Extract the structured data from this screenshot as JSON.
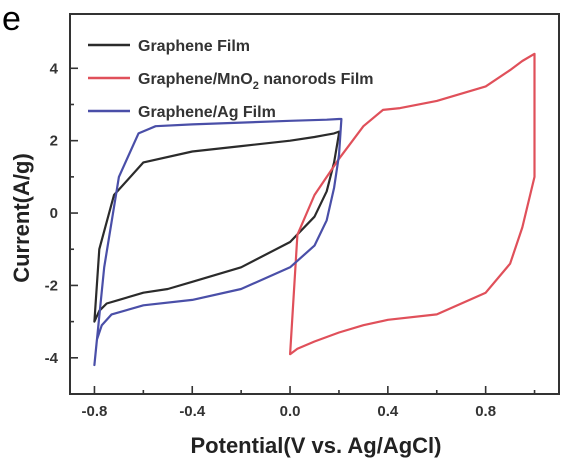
{
  "panel_label": "e",
  "chart_data": {
    "type": "line",
    "xlabel": "Potential(V vs. Ag/AgCl)",
    "ylabel": "Current(A/g)",
    "xlim": [
      -0.9,
      1.1
    ],
    "ylim": [
      -5.0,
      5.5
    ],
    "x_ticks": [
      -0.8,
      -0.4,
      0.0,
      0.4,
      0.8
    ],
    "x_tick_labels": [
      "-0.8",
      "-0.4",
      "0.0",
      "0.4",
      "0.8"
    ],
    "y_ticks": [
      -4,
      -2,
      0,
      2,
      4
    ],
    "y_tick_labels": [
      "-4",
      "-2",
      "0",
      "2",
      "4"
    ],
    "grid": false,
    "legend_position": "top-left",
    "series": [
      {
        "name": "Graphene Film",
        "legend_main": "Graphene Film",
        "legend_sub": "",
        "legend_tail": "",
        "color": "#2b2b2b",
        "x": [
          -0.8,
          -0.78,
          -0.75,
          -0.7,
          -0.6,
          -0.5,
          -0.4,
          -0.2,
          0.0,
          0.1,
          0.15,
          0.18,
          0.2,
          0.2,
          0.18,
          0.14,
          0.1,
          0.0,
          -0.2,
          -0.4,
          -0.6,
          -0.72,
          -0.78,
          -0.8
        ],
        "y": [
          -3.0,
          -2.7,
          -2.5,
          -2.4,
          -2.2,
          -2.1,
          -1.9,
          -1.5,
          -0.8,
          -0.1,
          0.6,
          1.4,
          2.2,
          2.25,
          2.2,
          2.15,
          2.1,
          2.0,
          1.85,
          1.7,
          1.4,
          0.5,
          -1.0,
          -3.0
        ]
      },
      {
        "name": "Graphene/MnO2 nanorods Film",
        "legend_main": "Graphene/MnO",
        "legend_sub": "2",
        "legend_tail": " nanorods Film",
        "color": "#e0505a",
        "x": [
          0.0,
          0.03,
          0.1,
          0.2,
          0.3,
          0.4,
          0.6,
          0.8,
          0.9,
          0.95,
          1.0,
          1.0,
          0.95,
          0.9,
          0.8,
          0.6,
          0.45,
          0.38,
          0.3,
          0.2,
          0.1,
          0.03,
          0.0
        ],
        "y": [
          -3.9,
          -3.75,
          -3.55,
          -3.3,
          -3.1,
          -2.95,
          -2.8,
          -2.2,
          -1.4,
          -0.4,
          1.0,
          4.4,
          4.2,
          3.95,
          3.5,
          3.1,
          2.9,
          2.85,
          2.4,
          1.5,
          0.5,
          -0.6,
          -3.9
        ]
      },
      {
        "name": "Graphene/Ag Film",
        "legend_main": "Graphene/Ag Film",
        "legend_sub": "",
        "legend_tail": "",
        "color": "#4a4fa8",
        "x": [
          -0.8,
          -0.79,
          -0.77,
          -0.73,
          -0.6,
          -0.4,
          -0.2,
          0.0,
          0.1,
          0.15,
          0.18,
          0.2,
          0.21,
          0.2,
          0.15,
          0.0,
          -0.2,
          -0.4,
          -0.55,
          -0.62,
          -0.7,
          -0.76,
          -0.8
        ],
        "y": [
          -4.2,
          -3.5,
          -3.1,
          -2.8,
          -2.55,
          -2.4,
          -2.1,
          -1.5,
          -0.9,
          -0.2,
          0.7,
          1.6,
          2.6,
          2.6,
          2.58,
          2.55,
          2.5,
          2.45,
          2.4,
          2.2,
          1.0,
          -1.5,
          -4.2
        ]
      }
    ]
  }
}
